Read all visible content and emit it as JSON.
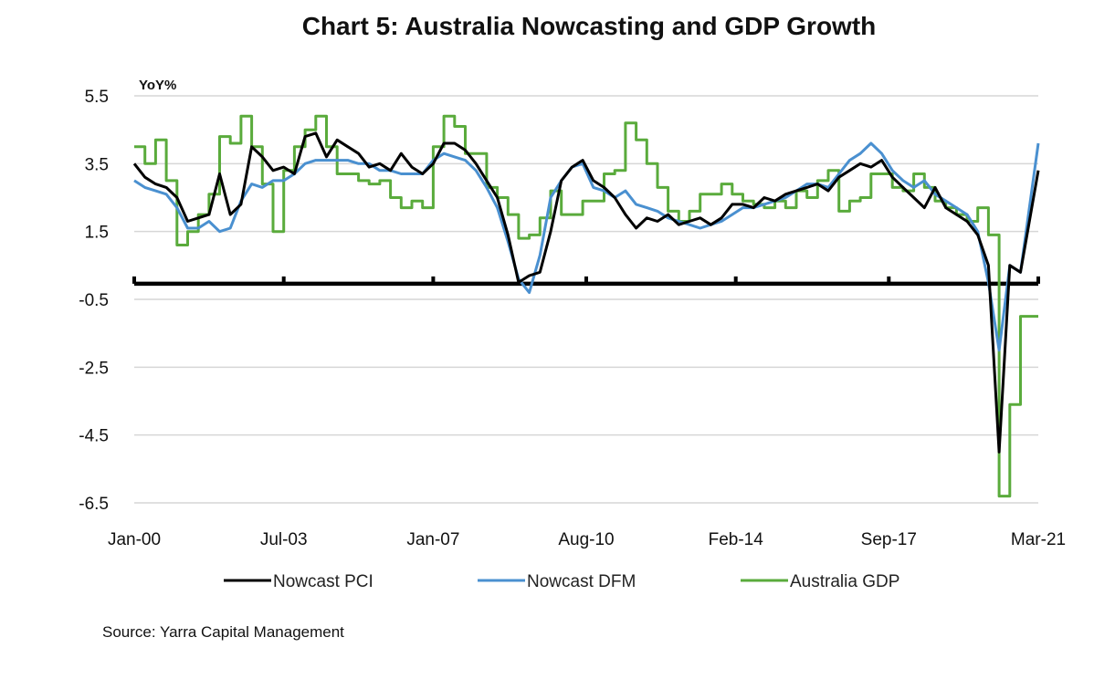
{
  "chart_data": {
    "type": "line",
    "title": "Chart 5: Australia Nowcasting and GDP Growth",
    "ylabel": "YoY%",
    "xlabel": "",
    "source": "Source: Yarra Capital Management",
    "ylim": [
      -6.5,
      5.5
    ],
    "yticks": [
      5.5,
      3.5,
      1.5,
      -0.5,
      -2.5,
      -4.5,
      -6.5
    ],
    "ytick_labels": [
      "5.5",
      "3.5",
      "1.5",
      "-0.5",
      "-2.5",
      "-4.5",
      "-6.5"
    ],
    "x_start": "Jan-00",
    "x_frequency": "quarterly",
    "xticks_month_index": [
      0,
      42,
      84,
      127,
      169,
      212,
      254
    ],
    "xtick_labels": [
      "Jan-00",
      "Jul-03",
      "Jan-07",
      "Aug-10",
      "Feb-14",
      "Sep-17",
      "Mar-21"
    ],
    "grid": true,
    "legend_position": "bottom",
    "series": [
      {
        "name": "Nowcast PCI",
        "color": "#000000",
        "values": [
          3.5,
          3.1,
          2.9,
          2.8,
          2.5,
          1.8,
          1.9,
          2.0,
          3.2,
          2.0,
          2.3,
          4.0,
          3.7,
          3.3,
          3.4,
          3.2,
          4.3,
          4.4,
          3.7,
          4.2,
          4.0,
          3.8,
          3.4,
          3.5,
          3.3,
          3.8,
          3.4,
          3.2,
          3.5,
          4.1,
          4.1,
          3.9,
          3.5,
          3.0,
          2.5,
          1.4,
          0.0,
          0.2,
          0.3,
          1.5,
          3.0,
          3.4,
          3.6,
          3.0,
          2.8,
          2.5,
          2.0,
          1.6,
          1.9,
          1.8,
          2.0,
          1.7,
          1.8,
          1.9,
          1.7,
          1.9,
          2.3,
          2.3,
          2.2,
          2.5,
          2.4,
          2.6,
          2.7,
          2.8,
          2.9,
          2.7,
          3.1,
          3.3,
          3.5,
          3.4,
          3.6,
          3.1,
          2.8,
          2.5,
          2.2,
          2.8,
          2.2,
          2.0,
          1.8,
          1.4,
          0.5,
          -5.0,
          0.5,
          0.3,
          3.3
        ]
      },
      {
        "name": "Nowcast DFM",
        "color": "#4a90d0",
        "values": [
          3.0,
          2.8,
          2.7,
          2.6,
          2.2,
          1.6,
          1.6,
          1.8,
          1.5,
          1.6,
          2.4,
          2.9,
          2.8,
          3.0,
          3.0,
          3.2,
          3.5,
          3.6,
          3.6,
          3.6,
          3.6,
          3.5,
          3.5,
          3.3,
          3.3,
          3.2,
          3.2,
          3.2,
          3.6,
          3.8,
          3.7,
          3.6,
          3.3,
          2.8,
          2.2,
          1.2,
          0.1,
          -0.3,
          0.8,
          2.5,
          3.0,
          3.4,
          3.5,
          2.8,
          2.7,
          2.5,
          2.7,
          2.3,
          2.2,
          2.1,
          1.9,
          1.8,
          1.7,
          1.6,
          1.7,
          1.8,
          2.0,
          2.2,
          2.2,
          2.3,
          2.4,
          2.5,
          2.7,
          2.9,
          2.9,
          2.8,
          3.2,
          3.6,
          3.8,
          4.1,
          3.8,
          3.3,
          3.0,
          2.8,
          3.0,
          2.6,
          2.4,
          2.2,
          2.0,
          1.5,
          0.0,
          -2.0,
          0.5,
          0.3,
          4.1
        ]
      },
      {
        "name": "Australia GDP",
        "color": "#5aab3c",
        "values": [
          4.0,
          3.5,
          4.2,
          3.0,
          1.1,
          1.5,
          2.0,
          2.6,
          4.3,
          4.1,
          4.9,
          4.0,
          2.9,
          1.5,
          3.3,
          4.0,
          4.5,
          4.9,
          4.0,
          3.2,
          3.2,
          3.0,
          2.9,
          3.0,
          2.5,
          2.2,
          2.4,
          2.2,
          4.0,
          4.9,
          4.6,
          3.8,
          3.8,
          2.8,
          2.5,
          2.0,
          1.3,
          1.4,
          1.9,
          2.7,
          2.0,
          2.0,
          2.4,
          2.4,
          3.2,
          3.3,
          4.7,
          4.2,
          3.5,
          2.8,
          2.1,
          1.8,
          2.1,
          2.6,
          2.6,
          2.9,
          2.6,
          2.4,
          2.3,
          2.2,
          2.4,
          2.2,
          2.7,
          2.5,
          3.0,
          3.3,
          2.1,
          2.4,
          2.5,
          3.2,
          3.2,
          2.8,
          2.7,
          3.2,
          2.8,
          2.4,
          2.2,
          2.0,
          1.8,
          2.2,
          1.4,
          -6.3,
          -3.6,
          -1.0,
          -1.0
        ]
      }
    ]
  }
}
